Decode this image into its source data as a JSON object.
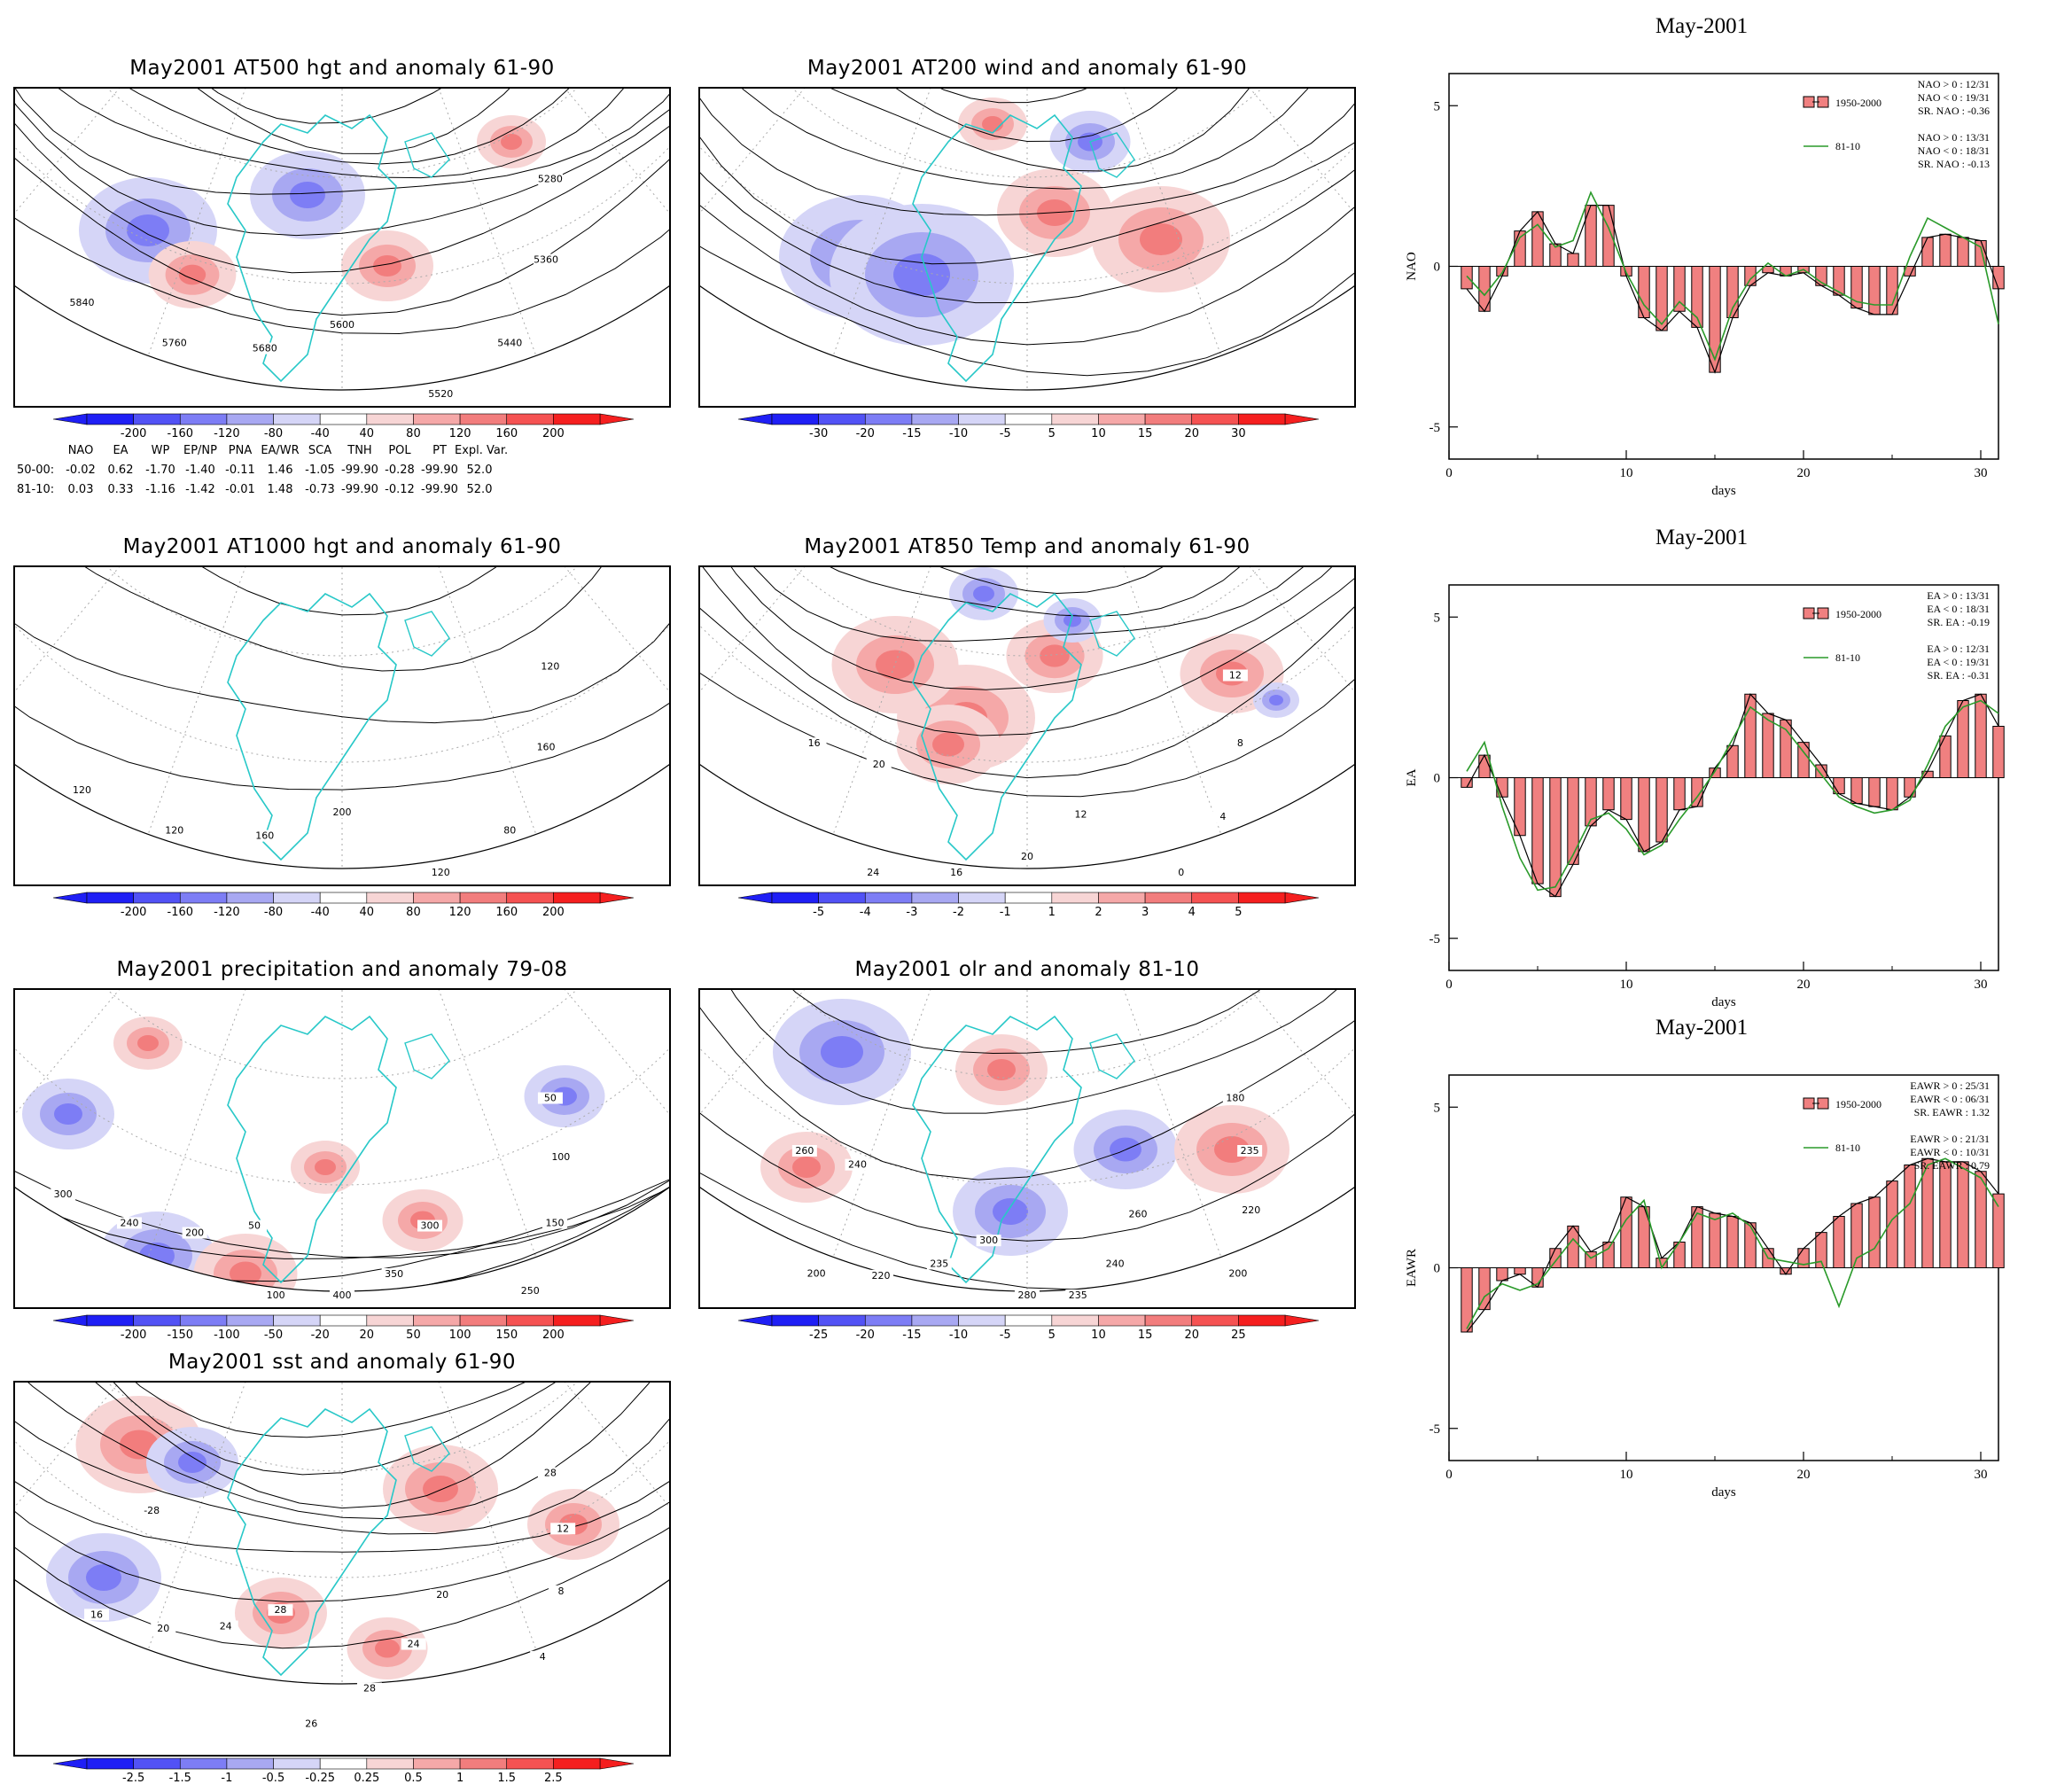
{
  "colors": {
    "blue_scale": [
      "#1f1ff5",
      "#5252f5",
      "#7d7df5",
      "#a8a8f2",
      "#d5d5f7"
    ],
    "red_scale": [
      "#f7d5d5",
      "#f5a8a8",
      "#f27d7d",
      "#f55252",
      "#f51f1f"
    ],
    "coast": "#28c8c8",
    "contour": "#000000",
    "bar_fill": "#f08080",
    "line_green": "#2a9a2a"
  },
  "maps": [
    {
      "id": "at500",
      "title": "May2001 AT500 hgt and anomaly 61-90",
      "contour_labels": [
        "5280",
        "5360",
        "5440",
        "5520",
        "5600",
        "5680",
        "5760",
        "5840"
      ],
      "colorbar": [
        "-200",
        "-160",
        "-120",
        "-80",
        "-40",
        "40",
        "80",
        "120",
        "160",
        "200"
      ]
    },
    {
      "id": "at200",
      "title": "May2001 AT200 wind and anomaly 61-90",
      "contour_labels": [],
      "colorbar": [
        "-30",
        "-20",
        "-15",
        "-10",
        "-5",
        "5",
        "10",
        "15",
        "20",
        "30"
      ]
    },
    {
      "id": "at1000",
      "title": "May2001 AT1000 hgt and anomaly 61-90",
      "contour_labels": [
        "120",
        "160",
        "80",
        "120",
        "200",
        "160",
        "120",
        "120"
      ],
      "colorbar": [
        "-200",
        "-160",
        "-120",
        "-80",
        "-40",
        "40",
        "80",
        "120",
        "160",
        "200"
      ]
    },
    {
      "id": "at850",
      "title": "May2001 AT850 Temp and anomaly 61-90",
      "contour_labels": [
        "12",
        "8",
        "4",
        "0",
        "12",
        "20",
        "16",
        "24",
        "20",
        "16"
      ],
      "colorbar": [
        "-5",
        "-4",
        "-3",
        "-2",
        "-1",
        "1",
        "2",
        "3",
        "4",
        "5"
      ]
    },
    {
      "id": "precip",
      "title": "May2001 precipitation and anomaly 79-08",
      "contour_labels": [
        "50",
        "100",
        "150",
        "250",
        "300",
        "350",
        "400",
        "100",
        "50",
        "200",
        "240",
        "300"
      ],
      "colorbar": [
        "-200",
        "-150",
        "-100",
        "-50",
        "-20",
        "20",
        "50",
        "100",
        "150",
        "200"
      ]
    },
    {
      "id": "olr",
      "title": "May2001 olr and anomaly 81-10",
      "contour_labels": [
        "180",
        "235",
        "220",
        "200",
        "260",
        "240",
        "235",
        "280",
        "300",
        "235",
        "220",
        "200",
        "240",
        "260"
      ],
      "colorbar": [
        "-25",
        "-20",
        "-15",
        "-10",
        "-5",
        "5",
        "10",
        "15",
        "20",
        "25"
      ]
    },
    {
      "id": "sst",
      "title": "May2001 sst and anomaly 61-90",
      "contour_labels": [
        "28",
        "12",
        "8",
        "4",
        "20",
        "24",
        "28",
        "26",
        "28",
        "24",
        "20",
        "16",
        "-28"
      ],
      "colorbar": [
        "-2.5",
        "-1.5",
        "-1",
        "-0.5",
        "-0.25",
        "0.25",
        "0.5",
        "1",
        "1.5",
        "2.5"
      ]
    }
  ],
  "index_table": {
    "headers": [
      "NAO",
      "EA",
      "WP",
      "EP/NP",
      "PNA",
      "EA/WR",
      "SCA",
      "TNH",
      "POL",
      "PT",
      "Expl. Var."
    ],
    "rows": [
      {
        "label": "50-00:",
        "values": [
          "-0.02",
          "0.62",
          "-1.70",
          "-1.40",
          "-0.11",
          "1.46",
          "-1.05",
          "-99.90",
          "-0.28",
          "-99.90",
          "52.0"
        ]
      },
      {
        "label": "81-10:",
        "values": [
          "0.03",
          "0.33",
          "-1.16",
          "-1.42",
          "-0.01",
          "1.48",
          "-0.73",
          "-99.90",
          "-0.12",
          "-99.90",
          "52.0"
        ]
      }
    ]
  },
  "chart_data": [
    {
      "type": "bar",
      "title": "May-2001",
      "xlabel": "days",
      "ylabel": "NAO",
      "xlim": [
        0,
        31
      ],
      "ylim": [
        -6,
        6
      ],
      "xticks": [
        "0",
        "10",
        "20",
        "30"
      ],
      "yticks": [
        "-5",
        "0",
        "5"
      ],
      "legend": {
        "bar_label": "1950-2000",
        "line_label": "81-10",
        "bar_stats": [
          "NAO > 0 : 12/31",
          "NAO < 0 : 19/31",
          "SR. NAO : -0.36"
        ],
        "line_stats": [
          "NAO > 0 : 13/31",
          "NAO < 0 : 18/31",
          "SR. NAO : -0.13"
        ]
      },
      "x": [
        1,
        2,
        3,
        4,
        5,
        6,
        7,
        8,
        9,
        10,
        11,
        12,
        13,
        14,
        15,
        16,
        17,
        18,
        19,
        20,
        21,
        22,
        23,
        24,
        25,
        26,
        27,
        28,
        29,
        30,
        31
      ],
      "series": [
        {
          "name": "1950-2000",
          "values": [
            -0.7,
            -1.4,
            -0.3,
            1.1,
            1.7,
            0.7,
            0.4,
            1.9,
            1.9,
            -0.3,
            -1.6,
            -2.0,
            -1.4,
            -1.9,
            -3.3,
            -1.6,
            -0.6,
            -0.2,
            -0.3,
            -0.2,
            -0.6,
            -0.9,
            -1.3,
            -1.5,
            -1.5,
            -0.3,
            0.9,
            1.0,
            0.9,
            0.8,
            -0.7
          ]
        },
        {
          "name": "81-10",
          "values": [
            -0.3,
            -0.9,
            -0.2,
            0.9,
            1.3,
            0.6,
            0.8,
            2.3,
            1.2,
            -0.2,
            -1.2,
            -1.8,
            -1.1,
            -1.6,
            -2.9,
            -1.3,
            -0.4,
            0.1,
            -0.3,
            -0.1,
            -0.5,
            -0.8,
            -1.1,
            -1.2,
            -1.2,
            0.3,
            1.5,
            1.2,
            0.9,
            0.6,
            -1.8
          ]
        }
      ]
    },
    {
      "type": "bar",
      "title": "May-2001",
      "xlabel": "days",
      "ylabel": "EA",
      "xlim": [
        0,
        31
      ],
      "ylim": [
        -6,
        6
      ],
      "xticks": [
        "0",
        "10",
        "20",
        "30"
      ],
      "yticks": [
        "-5",
        "0",
        "5"
      ],
      "legend": {
        "bar_label": "1950-2000",
        "line_label": "81-10",
        "bar_stats": [
          "EA > 0 : 13/31",
          "EA < 0 : 18/31",
          "SR. EA : -0.19"
        ],
        "line_stats": [
          "EA > 0 : 12/31",
          "EA < 0 : 19/31",
          "SR. EA : -0.31"
        ]
      },
      "x": [
        1,
        2,
        3,
        4,
        5,
        6,
        7,
        8,
        9,
        10,
        11,
        12,
        13,
        14,
        15,
        16,
        17,
        18,
        19,
        20,
        21,
        22,
        23,
        24,
        25,
        26,
        27,
        28,
        29,
        30,
        31
      ],
      "series": [
        {
          "name": "1950-2000",
          "values": [
            -0.3,
            0.7,
            -0.6,
            -1.8,
            -3.3,
            -3.7,
            -2.7,
            -1.5,
            -1.0,
            -1.3,
            -2.3,
            -2.0,
            -1.0,
            -0.9,
            0.3,
            1.0,
            2.6,
            2.0,
            1.8,
            1.1,
            0.4,
            -0.5,
            -0.8,
            -0.9,
            -1.0,
            -0.6,
            0.2,
            1.3,
            2.4,
            2.6,
            1.6
          ]
        },
        {
          "name": "81-10",
          "values": [
            0.2,
            1.1,
            -0.9,
            -2.5,
            -3.5,
            -3.4,
            -2.4,
            -1.3,
            -1.1,
            -1.6,
            -2.4,
            -2.1,
            -1.3,
            -0.6,
            0.2,
            1.2,
            2.2,
            1.8,
            1.5,
            0.8,
            0.1,
            -0.6,
            -0.9,
            -1.1,
            -1.0,
            -0.7,
            0.4,
            1.6,
            2.2,
            2.4,
            2.0
          ]
        }
      ]
    },
    {
      "type": "bar",
      "title": "May-2001",
      "xlabel": "days",
      "ylabel": "EAWR",
      "xlim": [
        0,
        31
      ],
      "ylim": [
        -6,
        6
      ],
      "xticks": [
        "0",
        "10",
        "20",
        "30"
      ],
      "yticks": [
        "-5",
        "0",
        "5"
      ],
      "legend": {
        "bar_label": "1950-2000",
        "line_label": "81-10",
        "bar_stats": [
          "EAWR > 0 : 25/31",
          "EAWR < 0 : 06/31",
          "SR. EAWR : 1.32"
        ],
        "line_stats": [
          "EAWR > 0 : 21/31",
          "EAWR < 0 : 10/31",
          "SR. EAWR : 0.79"
        ]
      },
      "x": [
        1,
        2,
        3,
        4,
        5,
        6,
        7,
        8,
        9,
        10,
        11,
        12,
        13,
        14,
        15,
        16,
        17,
        18,
        19,
        20,
        21,
        22,
        23,
        24,
        25,
        26,
        27,
        28,
        29,
        30,
        31
      ],
      "series": [
        {
          "name": "1950-2000",
          "values": [
            -2.0,
            -1.3,
            -0.4,
            -0.2,
            -0.6,
            0.6,
            1.3,
            0.5,
            0.8,
            2.2,
            1.9,
            0.3,
            0.8,
            1.9,
            1.7,
            1.6,
            1.4,
            0.6,
            -0.2,
            0.6,
            1.1,
            1.6,
            2.0,
            2.2,
            2.7,
            3.2,
            3.4,
            3.3,
            3.3,
            3.0,
            2.3
          ]
        },
        {
          "name": "81-10",
          "values": [
            -1.9,
            -0.9,
            -0.5,
            -0.7,
            -0.5,
            0.2,
            0.9,
            0.3,
            0.6,
            1.5,
            2.1,
            0.0,
            0.8,
            1.7,
            1.5,
            1.7,
            1.3,
            0.3,
            0.2,
            0.1,
            0.2,
            -1.2,
            0.3,
            0.6,
            1.5,
            2.0,
            3.2,
            3.4,
            3.1,
            2.8,
            1.9
          ]
        }
      ]
    }
  ]
}
